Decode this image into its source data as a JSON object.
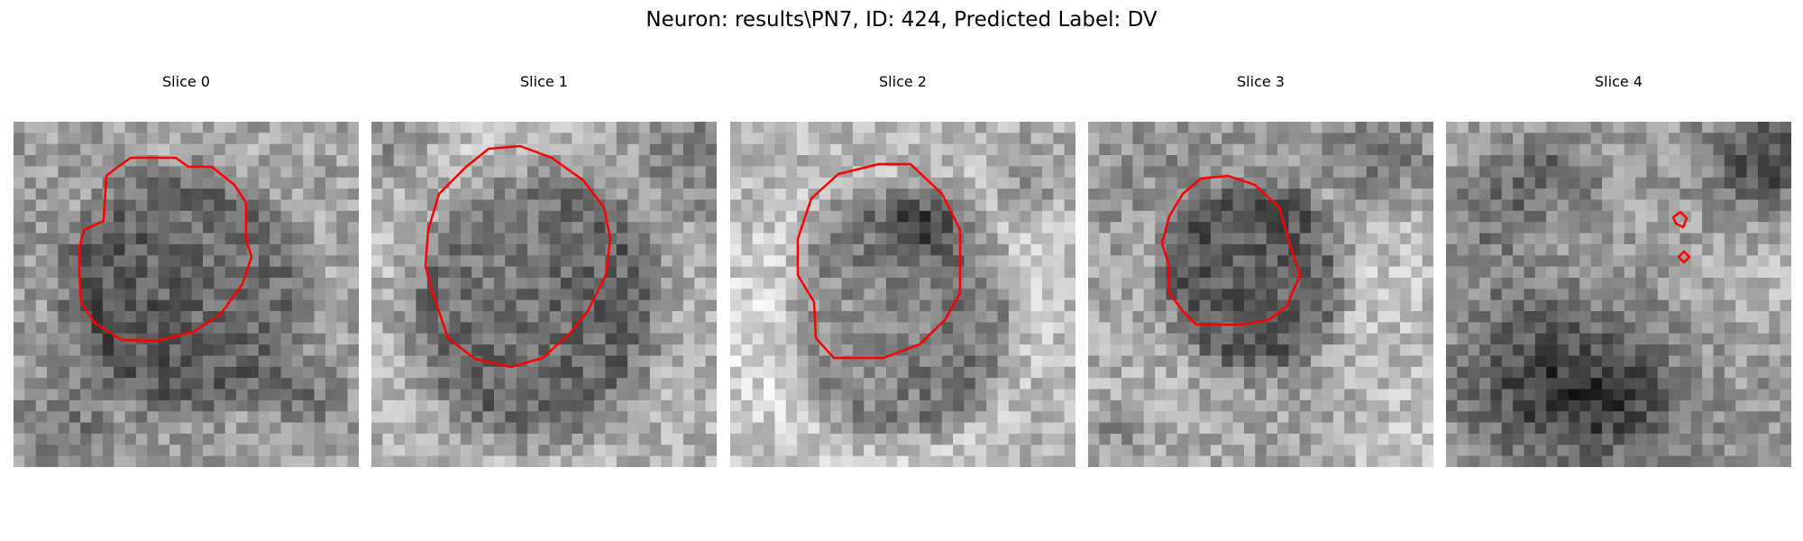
{
  "figure": {
    "title": "Neuron: results\\PN7, ID: 424, Predicted Label: DV"
  },
  "panels": [
    {
      "title": "Slice 0"
    },
    {
      "title": "Slice 1"
    },
    {
      "title": "Slice 2"
    },
    {
      "title": "Slice 3"
    },
    {
      "title": "Slice 4"
    }
  ],
  "colors": {
    "contour": "#ff0000",
    "background": "#ffffff"
  }
}
